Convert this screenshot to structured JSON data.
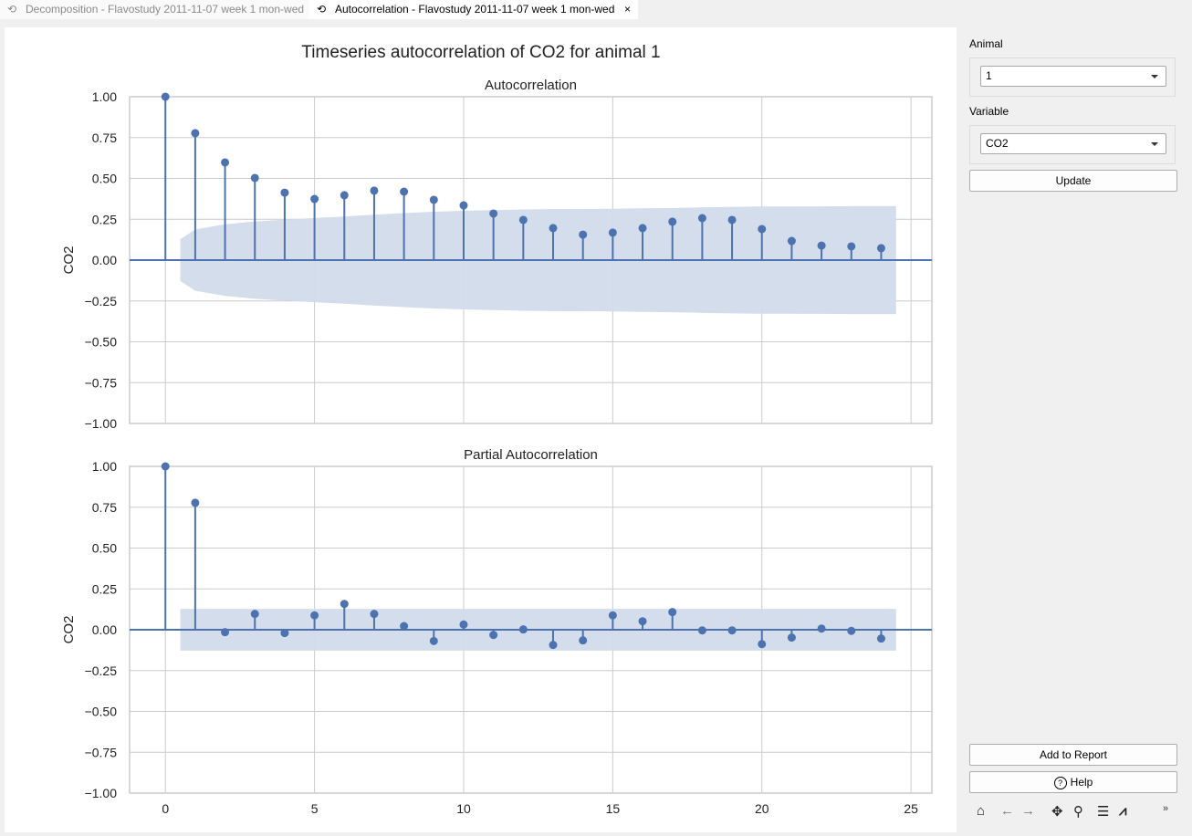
{
  "tabs": [
    {
      "label": "Decomposition - Flavostudy 2011-11-07 week 1 mon-wed",
      "active": false
    },
    {
      "label": "Autocorrelation - Flavostudy 2011-11-07 week 1 mon-wed",
      "active": true,
      "close": "×"
    }
  ],
  "panel": {
    "animal_label": "Animal",
    "animal_value": "1",
    "variable_label": "Variable",
    "variable_value": "CO2",
    "update": "Update",
    "add_report": "Add to Report",
    "help": "Help",
    "help_icon": "?",
    "toolbar": [
      "home-icon",
      "back-icon",
      "forward-icon",
      "pan-icon",
      "zoom-icon",
      "configure-subplots-icon",
      "edit-axis-icon",
      "more-icon"
    ]
  },
  "colors": {
    "stem": "#4c72b0",
    "band": "#d2dbea",
    "grid": "#cccccc"
  },
  "chart_data": [
    {
      "type": "stem",
      "suptitle": "Timeseries autocorrelation of CO2 for animal 1",
      "title": "Autocorrelation",
      "ylabel": "CO2",
      "xlim": [
        -1.2,
        25.7
      ],
      "ylim": [
        -1,
        1
      ],
      "xticks": [
        0,
        5,
        10,
        15,
        20,
        25
      ],
      "yticks": [
        "1.00",
        "0.75",
        "0.50",
        "0.25",
        "0.00",
        "−0.25",
        "−0.50",
        "−0.75",
        "−1.00"
      ],
      "grid": true,
      "lags": [
        0,
        1,
        2,
        3,
        4,
        5,
        6,
        7,
        8,
        9,
        10,
        11,
        12,
        13,
        14,
        15,
        16,
        17,
        18,
        19,
        20,
        21,
        22,
        23,
        24
      ],
      "values": [
        1.0,
        0.777,
        0.598,
        0.503,
        0.413,
        0.374,
        0.397,
        0.425,
        0.419,
        0.369,
        0.335,
        0.285,
        0.246,
        0.196,
        0.156,
        0.168,
        0.196,
        0.235,
        0.257,
        0.246,
        0.19,
        0.117,
        0.089,
        0.084,
        0.073
      ],
      "confint_halfwidth": [
        0.128,
        0.188,
        0.219,
        0.237,
        0.248,
        0.258,
        0.267,
        0.278,
        0.288,
        0.296,
        0.302,
        0.306,
        0.31,
        0.312,
        0.313,
        0.314,
        0.317,
        0.319,
        0.323,
        0.326,
        0.328,
        0.328,
        0.329,
        0.33
      ]
    },
    {
      "type": "stem",
      "title": "Partial Autocorrelation",
      "ylabel": "CO2",
      "xlim": [
        -1.2,
        25.7
      ],
      "ylim": [
        -1,
        1
      ],
      "xticks": [
        0,
        5,
        10,
        15,
        20,
        25
      ],
      "yticks": [
        "1.00",
        "0.75",
        "0.50",
        "0.25",
        "0.00",
        "−0.25",
        "−0.50",
        "−0.75",
        "−1.00"
      ],
      "grid": true,
      "lags": [
        0,
        1,
        2,
        3,
        4,
        5,
        6,
        7,
        8,
        9,
        10,
        11,
        12,
        13,
        14,
        15,
        16,
        17,
        18,
        19,
        20,
        21,
        22,
        23,
        24
      ],
      "values": [
        1.0,
        0.777,
        -0.015,
        0.097,
        -0.02,
        0.088,
        0.158,
        0.097,
        0.022,
        -0.069,
        0.032,
        -0.032,
        0.002,
        -0.093,
        -0.065,
        0.088,
        0.052,
        0.108,
        -0.004,
        -0.004,
        -0.088,
        -0.048,
        0.007,
        -0.007,
        -0.054
      ],
      "confint_halfwidth": [
        0.128,
        0.128,
        0.128,
        0.128,
        0.128,
        0.128,
        0.128,
        0.128,
        0.128,
        0.128,
        0.128,
        0.128,
        0.128,
        0.128,
        0.128,
        0.128,
        0.128,
        0.128,
        0.128,
        0.128,
        0.128,
        0.128,
        0.128,
        0.128
      ]
    }
  ]
}
